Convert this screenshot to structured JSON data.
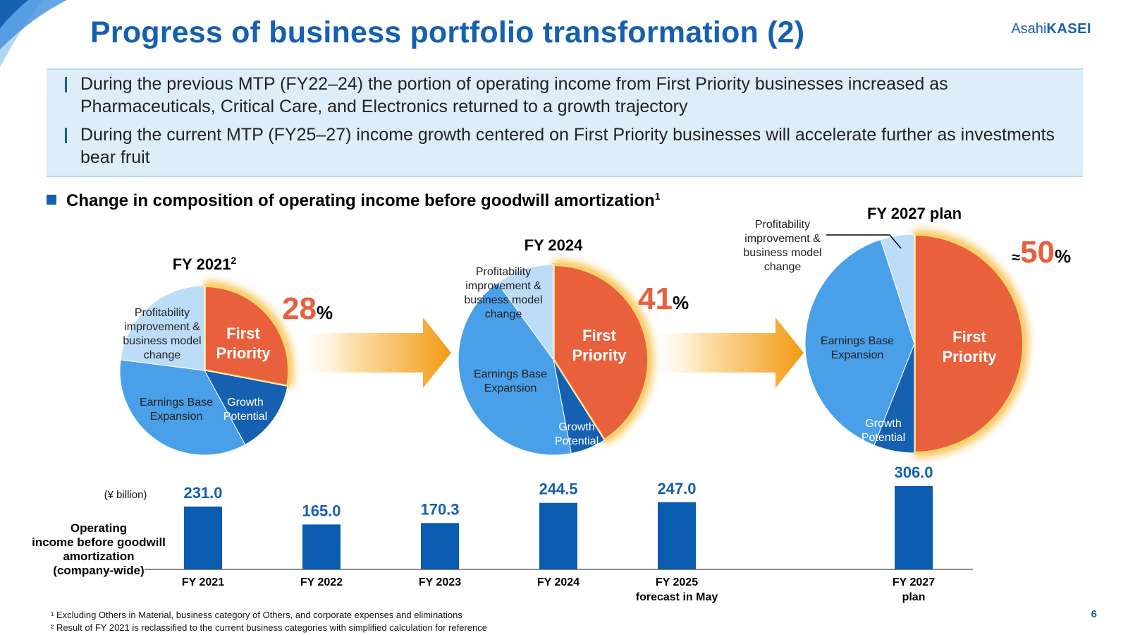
{
  "header": {
    "title": "Progress of business portfolio transformation (2)",
    "logo_prefix": "Asahi",
    "logo_suffix": "KASEI",
    "page_number": "6"
  },
  "summary": {
    "bullets": [
      "During the previous MTP (FY22–24) the portion of operating income from First Priority businesses increased as Pharmaceuticals, Critical Care, and Electronics returned to a growth trajectory",
      "During the current MTP (FY25–27) income growth centered on First Priority businesses will accelerate further as investments bear fruit"
    ]
  },
  "section": {
    "title": "Change in composition of operating income before goodwill amortization",
    "footnote_mark": "1"
  },
  "footnotes": [
    "¹ Excluding Others in Material, business category of Others, and corporate expenses and eliminations",
    "² Result of FY 2021 is reclassified to the current business categories with simplified calculation for reference"
  ],
  "colors": {
    "brand": "#1560b0",
    "first_priority": "#e8603c",
    "growth_potential": "#1560b0",
    "earnings_base": "#4aa0e8",
    "profitability": "#bcdcf8",
    "arrow": "#f5a623",
    "bar": "#0a5cb0"
  },
  "chart_data": [
    {
      "type": "pie",
      "title": "FY 2021",
      "title_mark": "2",
      "highlight_value": "28",
      "highlight_unit": "%",
      "labels": [
        "First Priority",
        "Growth Potential",
        "Earnings Base Expansion",
        "Profitability improvement & business model change"
      ],
      "label_lines": [
        [
          "First",
          "Priority"
        ],
        [
          "Growth",
          "Potential"
        ],
        [
          "Earnings Base",
          "Expansion"
        ],
        [
          "Profitability",
          "improvement &",
          "business model",
          "change"
        ]
      ],
      "values": [
        28,
        14,
        35,
        23
      ]
    },
    {
      "type": "pie",
      "title": "FY 2024",
      "highlight_value": "41",
      "highlight_unit": "%",
      "labels": [
        "First Priority",
        "Growth Potential",
        "Earnings Base Expansion",
        "Profitability improvement & business model change"
      ],
      "label_lines": [
        [
          "First",
          "Priority"
        ],
        [
          "Growth",
          "Potential"
        ],
        [
          "Earnings Base",
          "Expansion"
        ],
        [
          "Profitability",
          "improvement &",
          "business model",
          "change"
        ]
      ],
      "values": [
        41,
        6,
        43,
        10
      ]
    },
    {
      "type": "pie",
      "title": "FY 2027 plan",
      "highlight_prefix": "≈",
      "highlight_value": "50",
      "highlight_unit": "%",
      "labels": [
        "First Priority",
        "Growth Potential",
        "Earnings Base Expansion",
        "Profitability improvement & business model change"
      ],
      "label_lines": [
        [
          "First",
          "Priority"
        ],
        [
          "Growth",
          "Potential"
        ],
        [
          "Earnings Base",
          "Expansion"
        ],
        [
          "Profitability",
          "improvement &",
          "business model",
          "change"
        ]
      ],
      "values": [
        50,
        6,
        39,
        5
      ]
    },
    {
      "type": "bar",
      "unit_label": "(¥ billion)",
      "ylabel_lines": [
        "Operating",
        "income before goodwill",
        "amortization",
        "(company-wide)"
      ],
      "categories": [
        [
          "FY 2021"
        ],
        [
          "FY 2022"
        ],
        [
          "FY 2023"
        ],
        [
          "FY 2024"
        ],
        [
          "FY 2025",
          "forecast in May"
        ],
        [
          "FY 2027",
          "plan"
        ]
      ],
      "values": [
        231.0,
        165.0,
        170.3,
        244.5,
        247.0,
        306.0
      ],
      "value_labels": [
        "231.0",
        "165.0",
        "170.3",
        "244.5",
        "247.0",
        "306.0"
      ],
      "ylim": [
        0,
        306.0
      ]
    }
  ]
}
